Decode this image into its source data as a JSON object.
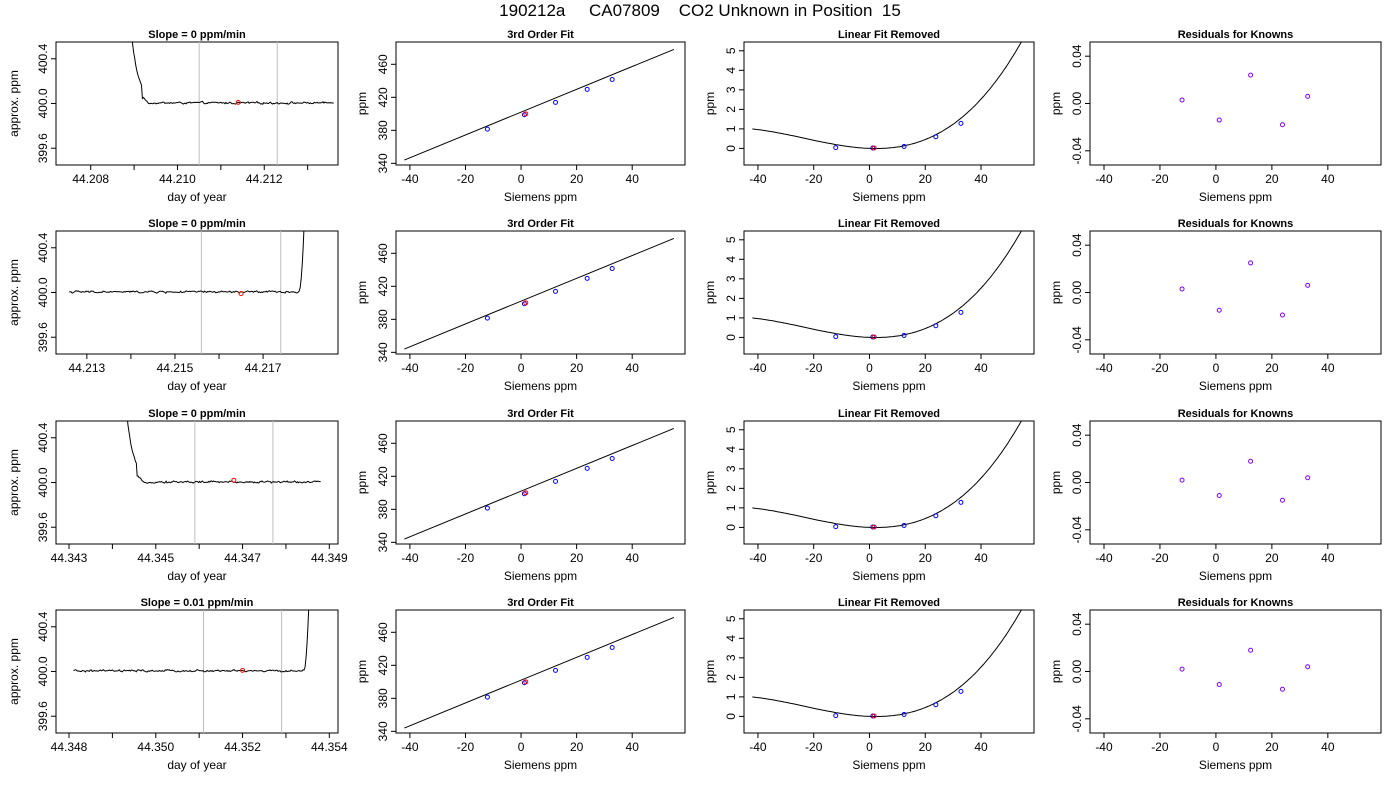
{
  "page": {
    "title": "190212a     CA07809    CO2 Unknown in Position  15"
  },
  "colors": {
    "line": "#000000",
    "marker_unknown": "#ff0000",
    "marker_known": "#0000ff",
    "marker_residual": "#8000ff",
    "vline": "#bebebe"
  },
  "chart_data": [
    {
      "row": 1,
      "panel": "timeseries",
      "type": "line",
      "title": "Slope =  0  ppm/min",
      "xlabel": "day of year",
      "ylabel": "approx. ppm",
      "xlim": [
        44.2072,
        44.2137
      ],
      "ylim": [
        399.45,
        400.55
      ],
      "xticks": [
        44.208,
        44.209,
        44.21,
        44.211,
        44.212,
        44.213
      ],
      "xtick_labels": [
        "44.208",
        "",
        "44.210",
        "",
        "44.212",
        ""
      ],
      "yticks": [
        399.6,
        400.0,
        400.4
      ],
      "ytick_labels": [
        "399.6",
        "400.0",
        "400.4"
      ],
      "vlines": [
        44.2105,
        44.2123
      ],
      "red_point": [
        44.2114,
        400.01
      ],
      "series": [
        {
          "x_start": 44.2087,
          "x_end": 44.2136,
          "points": 220,
          "values": "approx. flat trace near 400.0 ppm after initial flush spike"
        }
      ]
    },
    {
      "row": 1,
      "panel": "fit",
      "type": "line",
      "title": "3rd Order Fit",
      "xlabel": "Siemens ppm",
      "ylabel": "ppm",
      "xlim": [
        -45.0,
        59.0
      ],
      "ylim": [
        338.0,
        487.0
      ],
      "xticks": [
        -40,
        -20,
        0,
        20,
        40
      ],
      "xtick_labels": [
        "-40",
        "-20",
        "0",
        "20",
        "40"
      ],
      "yticks": [
        340,
        380,
        420,
        460
      ],
      "ytick_labels": [
        "340",
        "380",
        "420",
        "460"
      ],
      "fit_line": [
        [
          -42.0,
          344.0
        ],
        [
          55.0,
          478.0
        ]
      ],
      "known_points": [
        [
          -12.1,
          381.5
        ],
        [
          1.2,
          398.9
        ],
        [
          12.4,
          413.9
        ],
        [
          23.8,
          429.6
        ],
        [
          32.8,
          441.6
        ]
      ],
      "unknown_point": [
        1.7,
        400.0
      ]
    },
    {
      "row": 1,
      "panel": "linear_removed",
      "type": "line",
      "title": "Linear Fit Removed",
      "xlabel": "Siemens ppm",
      "ylabel": "ppm",
      "xlim": [
        -45.0,
        59.0
      ],
      "ylim": [
        -0.85,
        5.45
      ],
      "xticks": [
        -40,
        -20,
        0,
        20,
        40
      ],
      "xtick_labels": [
        "-40",
        "-20",
        "0",
        "20",
        "40"
      ],
      "yticks": [
        0,
        1,
        2,
        3,
        4,
        5
      ],
      "ytick_labels": [
        "0",
        "1",
        "2",
        "3",
        "4",
        "5"
      ],
      "curve": {
        "x_start": -42.0,
        "x_end": 55.5,
        "cubic_coeffs": [
          0.0,
          -0.0053,
          0.00109,
          1.55e-05
        ]
      },
      "known_points": [
        [
          -12.1,
          0.04
        ],
        [
          1.2,
          0.02
        ],
        [
          12.4,
          0.1
        ],
        [
          23.8,
          0.6
        ],
        [
          32.8,
          1.28
        ]
      ],
      "unknown_point": [
        1.7,
        0.02
      ]
    },
    {
      "row": 1,
      "panel": "residuals",
      "type": "scatter",
      "title": "Residuals for Knowns",
      "xlabel": "Siemens ppm",
      "ylabel": "ppm",
      "xlim": [
        -45.0,
        59.0
      ],
      "ylim": [
        -0.052,
        0.052
      ],
      "xticks": [
        -40,
        -20,
        0,
        20,
        40
      ],
      "xtick_labels": [
        "-40",
        "-20",
        "0",
        "20",
        "40"
      ],
      "yticks": [
        -0.04,
        0.0,
        0.04
      ],
      "ytick_labels": [
        "-0.04",
        "0.00",
        "0.04"
      ],
      "points": [
        [
          -12.1,
          0.003
        ],
        [
          1.2,
          -0.014
        ],
        [
          12.4,
          0.024
        ],
        [
          23.8,
          -0.018
        ],
        [
          32.8,
          0.006
        ]
      ]
    },
    {
      "row": 2,
      "panel": "timeseries",
      "type": "line",
      "title": "Slope =  0  ppm/min",
      "xlabel": "day of year",
      "ylabel": "approx. ppm",
      "xlim": [
        44.2123,
        44.2187
      ],
      "ylim": [
        399.45,
        400.55
      ],
      "xticks": [
        44.213,
        44.214,
        44.215,
        44.216,
        44.217
      ],
      "xtick_labels": [
        "44.213",
        "",
        "44.215",
        "",
        "44.217"
      ],
      "yticks": [
        399.6,
        400.0,
        400.4
      ],
      "ytick_labels": [
        "399.6",
        "400.0",
        "400.4"
      ],
      "vlines": [
        44.2156,
        44.2174
      ],
      "red_point": [
        44.2165,
        399.99
      ],
      "series": [
        {
          "x_start": 44.2126,
          "x_end": 44.218,
          "points": 240,
          "values": "approx. flat trace near 400.0 ppm ending in a rise"
        }
      ]
    },
    {
      "row": 2,
      "panel": "fit",
      "type": "line",
      "title": "3rd Order Fit",
      "xlabel": "Siemens ppm",
      "ylabel": "ppm",
      "xlim": [
        -45.0,
        59.0
      ],
      "ylim": [
        338.0,
        487.0
      ],
      "xticks": [
        -40,
        -20,
        0,
        20,
        40
      ],
      "xtick_labels": [
        "-40",
        "-20",
        "0",
        "20",
        "40"
      ],
      "yticks": [
        340,
        380,
        420,
        460
      ],
      "ytick_labels": [
        "340",
        "380",
        "420",
        "460"
      ],
      "fit_line": [
        [
          -42.0,
          344.0
        ],
        [
          55.0,
          478.0
        ]
      ],
      "known_points": [
        [
          -12.1,
          381.5
        ],
        [
          1.2,
          398.9
        ],
        [
          12.4,
          413.9
        ],
        [
          23.8,
          429.6
        ],
        [
          32.8,
          441.6
        ]
      ],
      "unknown_point": [
        1.7,
        400.0
      ]
    },
    {
      "row": 2,
      "panel": "linear_removed",
      "type": "line",
      "title": "Linear Fit Removed",
      "xlabel": "Siemens ppm",
      "ylabel": "ppm",
      "xlim": [
        -45.0,
        59.0
      ],
      "ylim": [
        -0.85,
        5.45
      ],
      "xticks": [
        -40,
        -20,
        0,
        20,
        40
      ],
      "xtick_labels": [
        "-40",
        "-20",
        "0",
        "20",
        "40"
      ],
      "yticks": [
        0,
        1,
        2,
        3,
        4,
        5
      ],
      "ytick_labels": [
        "0",
        "1",
        "2",
        "3",
        "4",
        "5"
      ],
      "curve": {
        "x_start": -42.0,
        "x_end": 55.5,
        "cubic_coeffs": [
          0.0,
          -0.0053,
          0.00109,
          1.55e-05
        ]
      },
      "known_points": [
        [
          -12.1,
          0.04
        ],
        [
          1.2,
          0.02
        ],
        [
          12.4,
          0.1
        ],
        [
          23.8,
          0.6
        ],
        [
          32.8,
          1.28
        ]
      ],
      "unknown_point": [
        1.7,
        0.02
      ]
    },
    {
      "row": 2,
      "panel": "residuals",
      "type": "scatter",
      "title": "Residuals for Knowns",
      "xlabel": "Siemens ppm",
      "ylabel": "ppm",
      "xlim": [
        -45.0,
        59.0
      ],
      "ylim": [
        -0.052,
        0.052
      ],
      "xticks": [
        -40,
        -20,
        0,
        20,
        40
      ],
      "xtick_labels": [
        "-40",
        "-20",
        "0",
        "20",
        "40"
      ],
      "yticks": [
        -0.04,
        0.0,
        0.04
      ],
      "ytick_labels": [
        "-0.04",
        "0.00",
        "0.04"
      ],
      "points": [
        [
          -12.1,
          0.003
        ],
        [
          1.2,
          -0.015
        ],
        [
          12.4,
          0.025
        ],
        [
          23.8,
          -0.019
        ],
        [
          32.8,
          0.006
        ]
      ]
    },
    {
      "row": 3,
      "panel": "timeseries",
      "type": "line",
      "title": "Slope =  0  ppm/min",
      "xlabel": "day of year",
      "ylabel": "approx. ppm",
      "xlim": [
        44.3427,
        44.3492
      ],
      "ylim": [
        399.45,
        400.55
      ],
      "xticks": [
        44.343,
        44.344,
        44.345,
        44.346,
        44.347,
        44.348,
        44.349
      ],
      "xtick_labels": [
        "44.343",
        "",
        "44.345",
        "",
        "44.347",
        "",
        "44.349"
      ],
      "yticks": [
        399.6,
        400.0,
        400.4
      ],
      "ytick_labels": [
        "399.6",
        "400.0",
        "400.4"
      ],
      "vlines": [
        44.3459,
        44.3477
      ],
      "red_point": [
        44.3468,
        400.02
      ],
      "series": [
        {
          "x_start": 44.3441,
          "x_end": 44.3488,
          "points": 220,
          "values": "approx. flat trace near 400.0 ppm after initial flush spike"
        }
      ]
    },
    {
      "row": 3,
      "panel": "fit",
      "type": "line",
      "title": "3rd Order Fit",
      "xlabel": "Siemens ppm",
      "ylabel": "ppm",
      "xlim": [
        -45.0,
        59.0
      ],
      "ylim": [
        338.0,
        487.0
      ],
      "xticks": [
        -40,
        -20,
        0,
        20,
        40
      ],
      "xtick_labels": [
        "-40",
        "-20",
        "0",
        "20",
        "40"
      ],
      "yticks": [
        340,
        380,
        420,
        460
      ],
      "ytick_labels": [
        "340",
        "380",
        "420",
        "460"
      ],
      "fit_line": [
        [
          -42.0,
          344.0
        ],
        [
          55.0,
          478.0
        ]
      ],
      "known_points": [
        [
          -12.1,
          381.5
        ],
        [
          1.2,
          398.9
        ],
        [
          12.4,
          413.9
        ],
        [
          23.8,
          429.6
        ],
        [
          32.8,
          441.6
        ]
      ],
      "unknown_point": [
        1.7,
        400.0
      ]
    },
    {
      "row": 3,
      "panel": "linear_removed",
      "type": "line",
      "title": "Linear Fit Removed",
      "xlabel": "Siemens ppm",
      "ylabel": "ppm",
      "xlim": [
        -45.0,
        59.0
      ],
      "ylim": [
        -0.85,
        5.45
      ],
      "xticks": [
        -40,
        -20,
        0,
        20,
        40
      ],
      "xtick_labels": [
        "-40",
        "-20",
        "0",
        "20",
        "40"
      ],
      "yticks": [
        0,
        1,
        2,
        3,
        4,
        5
      ],
      "ytick_labels": [
        "0",
        "1",
        "2",
        "3",
        "4",
        "5"
      ],
      "curve": {
        "x_start": -42.0,
        "x_end": 55.5,
        "cubic_coeffs": [
          0.0,
          -0.0053,
          0.00109,
          1.55e-05
        ]
      },
      "known_points": [
        [
          -12.1,
          0.04
        ],
        [
          1.2,
          0.02
        ],
        [
          12.4,
          0.1
        ],
        [
          23.8,
          0.6
        ],
        [
          32.8,
          1.28
        ]
      ],
      "unknown_point": [
        1.7,
        0.02
      ]
    },
    {
      "row": 3,
      "panel": "residuals",
      "type": "scatter",
      "title": "Residuals for Knowns",
      "xlabel": "Siemens ppm",
      "ylabel": "ppm",
      "xlim": [
        -45.0,
        59.0
      ],
      "ylim": [
        -0.052,
        0.052
      ],
      "xticks": [
        -40,
        -20,
        0,
        20,
        40
      ],
      "xtick_labels": [
        "-40",
        "-20",
        "0",
        "20",
        "40"
      ],
      "yticks": [
        -0.04,
        0.0,
        0.04
      ],
      "ytick_labels": [
        "-0.04",
        "0.00",
        "0.04"
      ],
      "points": [
        [
          -12.1,
          0.002
        ],
        [
          1.2,
          -0.011
        ],
        [
          12.4,
          0.018
        ],
        [
          23.8,
          -0.015
        ],
        [
          32.8,
          0.004
        ]
      ]
    },
    {
      "row": 4,
      "panel": "timeseries",
      "type": "line",
      "title": "Slope =  0.01  ppm/min",
      "xlabel": "day of year",
      "ylabel": "approx. ppm",
      "xlim": [
        44.3477,
        44.3542
      ],
      "ylim": [
        399.45,
        400.55
      ],
      "xticks": [
        44.348,
        44.349,
        44.35,
        44.351,
        44.352,
        44.353,
        44.354
      ],
      "xtick_labels": [
        "44.348",
        "",
        "44.350",
        "",
        "44.352",
        "",
        "44.354"
      ],
      "yticks": [
        399.6,
        400.0,
        400.4
      ],
      "ytick_labels": [
        "399.6",
        "400.0",
        "400.4"
      ],
      "vlines": [
        44.3511,
        44.3529
      ],
      "red_point": [
        44.352,
        400.01
      ],
      "series": [
        {
          "x_start": 44.3481,
          "x_end": 44.3536,
          "points": 240,
          "values": "approx. flat trace near 400.0 ppm ending in a rise"
        }
      ]
    },
    {
      "row": 4,
      "panel": "fit",
      "type": "line",
      "title": "3rd Order Fit",
      "xlabel": "Siemens ppm",
      "ylabel": "ppm",
      "xlim": [
        -45.0,
        59.0
      ],
      "ylim": [
        338.0,
        487.0
      ],
      "xticks": [
        -40,
        -20,
        0,
        20,
        40
      ],
      "xtick_labels": [
        "-40",
        "-20",
        "0",
        "20",
        "40"
      ],
      "yticks": [
        340,
        380,
        420,
        460
      ],
      "ytick_labels": [
        "340",
        "380",
        "420",
        "460"
      ],
      "fit_line": [
        [
          -42.0,
          344.0
        ],
        [
          55.0,
          478.0
        ]
      ],
      "known_points": [
        [
          -12.1,
          381.5
        ],
        [
          1.2,
          398.9
        ],
        [
          12.4,
          413.9
        ],
        [
          23.8,
          429.6
        ],
        [
          32.8,
          441.6
        ]
      ],
      "unknown_point": [
        1.7,
        400.0
      ]
    },
    {
      "row": 4,
      "panel": "linear_removed",
      "type": "line",
      "title": "Linear Fit Removed",
      "xlabel": "Siemens ppm",
      "ylabel": "ppm",
      "xlim": [
        -45.0,
        59.0
      ],
      "ylim": [
        -0.85,
        5.45
      ],
      "xticks": [
        -40,
        -20,
        0,
        20,
        40
      ],
      "xtick_labels": [
        "-40",
        "-20",
        "0",
        "20",
        "40"
      ],
      "yticks": [
        0,
        1,
        2,
        3,
        4,
        5
      ],
      "ytick_labels": [
        "0",
        "1",
        "2",
        "3",
        "4",
        "5"
      ],
      "curve": {
        "x_start": -42.0,
        "x_end": 55.5,
        "cubic_coeffs": [
          0.0,
          -0.0053,
          0.00109,
          1.55e-05
        ]
      },
      "known_points": [
        [
          -12.1,
          0.04
        ],
        [
          1.2,
          0.02
        ],
        [
          12.4,
          0.1
        ],
        [
          23.8,
          0.6
        ],
        [
          32.8,
          1.28
        ]
      ],
      "unknown_point": [
        1.7,
        0.02
      ]
    },
    {
      "row": 4,
      "panel": "residuals",
      "type": "scatter",
      "title": "Residuals for Knowns",
      "xlabel": "Siemens ppm",
      "ylabel": "ppm",
      "xlim": [
        -45.0,
        59.0
      ],
      "ylim": [
        -0.052,
        0.052
      ],
      "xticks": [
        -40,
        -20,
        0,
        20,
        40
      ],
      "xtick_labels": [
        "-40",
        "-20",
        "0",
        "20",
        "40"
      ],
      "yticks": [
        -0.04,
        0.0,
        0.04
      ],
      "ytick_labels": [
        "-0.04",
        "0.00",
        "0.04"
      ],
      "points": [
        [
          -12.1,
          0.002
        ],
        [
          1.2,
          -0.011
        ],
        [
          12.4,
          0.018
        ],
        [
          23.8,
          -0.015
        ],
        [
          32.8,
          0.004
        ]
      ]
    }
  ]
}
